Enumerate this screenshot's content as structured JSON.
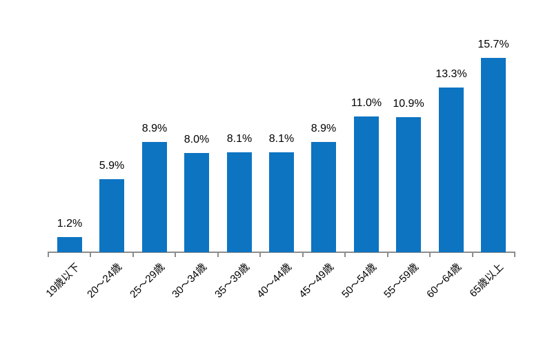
{
  "chart_data": {
    "type": "bar",
    "title": "",
    "xlabel": "",
    "ylabel": "",
    "categories": [
      "19歳以下",
      "20〜24歳",
      "25〜29歳",
      "30〜34歳",
      "35〜39歳",
      "40〜44歳",
      "45〜49歳",
      "50〜54歳",
      "55〜59歳",
      "60〜64歳",
      "65歳以上"
    ],
    "values": [
      1.2,
      5.9,
      8.9,
      8.0,
      8.1,
      8.1,
      8.9,
      11.0,
      10.9,
      13.3,
      15.7
    ],
    "data_labels": [
      "1.2%",
      "5.9%",
      "8.9%",
      "8.0%",
      "8.1%",
      "8.1%",
      "8.9%",
      "11.0%",
      "10.9%",
      "13.3%",
      "15.7%"
    ],
    "ylim": [
      0,
      16.5
    ],
    "grid": false,
    "legend": false,
    "value_label_position": "above",
    "x_tick_rotation_deg": 45,
    "colors": {
      "bar": "#0d74c2",
      "axis": "#8c8c8c",
      "text": "#000000",
      "background": "#ffffff"
    }
  }
}
